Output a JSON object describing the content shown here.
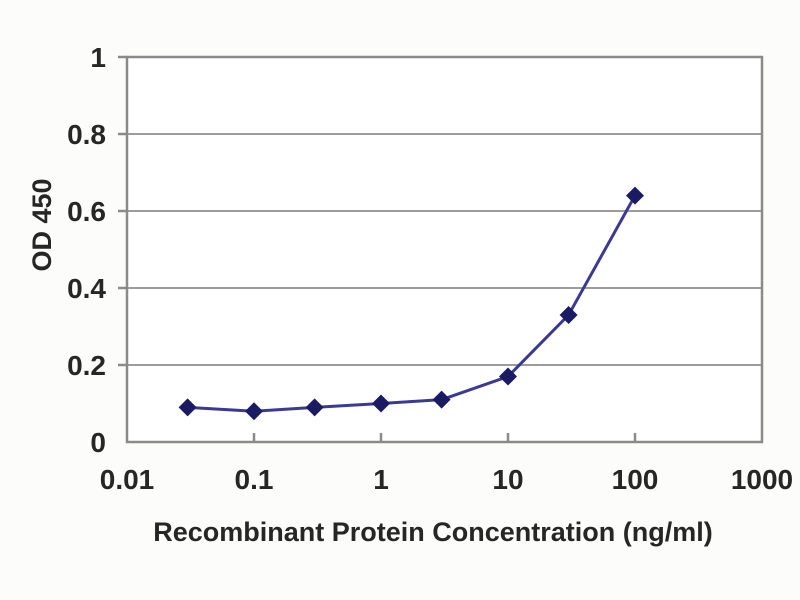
{
  "chart_data": {
    "type": "line",
    "title": "",
    "xlabel": "Recombinant Protein Concentration (ng/ml)",
    "ylabel": "OD 450",
    "x_scale": "log",
    "y_scale": "linear",
    "xlim": [
      0.01,
      1000
    ],
    "ylim": [
      0,
      1
    ],
    "x_ticks": [
      0.01,
      0.1,
      1,
      10,
      100,
      1000
    ],
    "x_tick_labels": [
      "0.01",
      "0.1",
      "1",
      "10",
      "100",
      "1000"
    ],
    "y_ticks": [
      0,
      0.2,
      0.4,
      0.6,
      0.8,
      1
    ],
    "y_tick_labels": [
      "0",
      "0.2",
      "0.4",
      "0.6",
      "0.8",
      "1"
    ],
    "grid": "horizontal-only",
    "legend": "none",
    "series": [
      {
        "name": "OD 450",
        "marker": "diamond",
        "x": [
          0.03,
          0.1,
          0.3,
          1,
          3,
          10,
          30,
          100
        ],
        "y": [
          0.09,
          0.08,
          0.09,
          0.1,
          0.11,
          0.17,
          0.33,
          0.64
        ]
      }
    ],
    "colors": {
      "line": "#3a3a96",
      "marker": "#1b1b63",
      "frame": "#8a8a8a",
      "grid": "#9c9c9c",
      "text": "#262626",
      "background": "#fcfcfa",
      "plot_background": "#ffffff"
    }
  }
}
